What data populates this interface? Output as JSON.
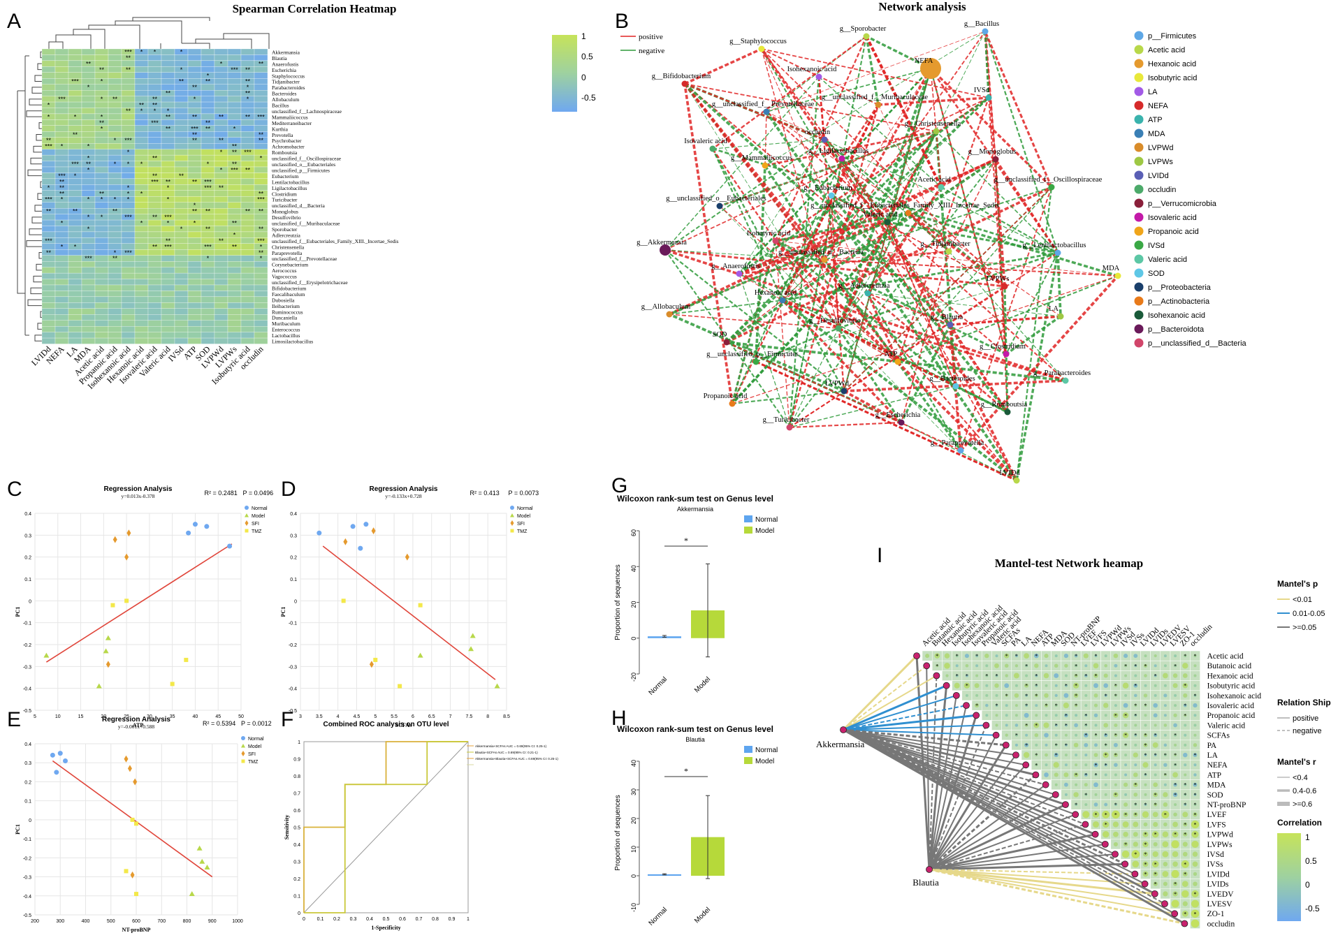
{
  "panels": {
    "a": {
      "letter": "A",
      "title": "Spearman Correlation Heatmap"
    },
    "b": {
      "letter": "B",
      "title": "Network analysis"
    },
    "c": {
      "letter": "C"
    },
    "d": {
      "letter": "D"
    },
    "e": {
      "letter": "E"
    },
    "f": {
      "letter": "F"
    },
    "g": {
      "letter": "G"
    },
    "h": {
      "letter": "H"
    },
    "i": {
      "letter": "I",
      "title": "Mantel-test Network heamap"
    }
  },
  "colors": {
    "low": "#6fa8f0",
    "mid": "#9ed1a0",
    "high": "#c6e35a",
    "red": "#e02424",
    "green": "#2e9a3a",
    "yellow": "#e5d54a",
    "gray": "#777777",
    "blue": "#2f8fd0"
  },
  "chart_data": [
    {
      "type": "heatmap",
      "title": "Spearman Correlation Heatmap",
      "columns": [
        "LVIDd",
        "NEFA",
        "LA",
        "MDA",
        "Acetic acid",
        "Propanoic acid",
        "Isohexanoic acid",
        "Hexanoic acid",
        "Isovaleric acid",
        "Valeric acid",
        "IVSd",
        "ATP",
        "SOD",
        "LVPWd",
        "LVPWs",
        "Isobutyric acid",
        "occludin"
      ],
      "rows": [
        "Akkermansia",
        "Blautia",
        "Anaerofustis",
        "Escherichia",
        "Staphylococcus",
        "Tidjanibacter",
        "Parabacteroides",
        "Bacteroides",
        "Allobaculum",
        "Bacillus",
        "unclassified_f__Lachnospiraceae",
        "Mammaliicoccus",
        "Mediterraneibacter",
        "Kurthia",
        "Prevotella",
        "Psychrobacter",
        "Achromobacter",
        "Romboutsia",
        "unclassified_f__Oscillospiraceae",
        "unclassified_o__Eubacteriales",
        "unclassified_p__Firmicutes",
        "Eubacterium",
        "Lentilactobacillus",
        "Ligilactobacillus",
        "Clostridium",
        "Turicibacter",
        "unclassified_d__Bacteria",
        "Monoglobus",
        "Desulfovibrio",
        "unclassified_f__Muribaculaceae",
        "Sporobacter",
        "Adlercreutzia",
        "unclassified_f__Eubacteriales_Family_XIII._Incertae_Sedis",
        "Christensenella",
        "Paraprevotella",
        "unclassified_f__Prevotellaceae",
        "Corynebacterium",
        "Aerococcus",
        "Vagococcus",
        "unclassified_f__Erysipelotrichaceae",
        "Bifidobacterium",
        "Faecalibaculum",
        "Dubosiella",
        "Ileibacterium",
        "Ruminococcus",
        "Duncaniella",
        "Muribaculum",
        "Enterococcus",
        "Lactobacillus",
        "Limosilactobacillus"
      ],
      "colorbar": {
        "ticks": [
          "1",
          "0.5",
          "0",
          "-0.5"
        ]
      }
    },
    {
      "type": "network",
      "title": "Network analysis",
      "edge_legend": [
        "positive",
        "negative"
      ],
      "node_legend": [
        "p__Firmicutes",
        "Acetic acid",
        "Hexanoic acid",
        "Isobutyric acid",
        "LA",
        "NEFA",
        "ATP",
        "MDA",
        "LVPWd",
        "LVPWs",
        "LVIDd",
        "occludin",
        "p__Verrucomicrobia",
        "Isovaleric acid",
        "Propanoic acid",
        "IVSd",
        "Valeric acid",
        "SOD",
        "p__Proteobacteria",
        "p__Actinobacteria",
        "Isohexanoic acid",
        "p__Bacteroidota",
        "p__unclassified_d__Bacteria"
      ],
      "nodes": [
        "g__Bacillus",
        "g__Sporobacter",
        "NEFA",
        "g__Staphylococcus",
        "Isohexanoic acid",
        "g__Bifidobacterium",
        "IVSd",
        "g__unclassified_f__Prevotellaceae",
        "g__unclassified_f__Muribaculaceae",
        "g__Christensenella",
        "occludin",
        "Isovaleric acid",
        "g__Monoglobus",
        "g__Ligilactobacillus",
        "g__Mammaliicoccus",
        "g__unclassified_f__Oscillospiraceae",
        "Acetic acid",
        "g__Eubacterium",
        "g__unclassified_o__Eubacteriales",
        "g__unclassified_f__Eubacteriales_Family_XIII._Incertae_Sedis",
        "Valeric acid",
        "g__Akkermansia",
        "Isobutyric acid",
        "g__Lentilactobacillus",
        "g__Tidjanibacter",
        "g__unclassified_d__Bacteria",
        "MDA",
        "g__Anaerofustis",
        "LVPWs",
        "g__Adlercreutzia",
        "Hexanoic acid",
        "g__Allobaculum",
        "LA",
        "g__Blautia",
        "g__Desulfovibrio",
        "SOD",
        "g__Clostridium",
        "ATP",
        "g__unclassified_p__Firmicutes",
        "g__Parabacteroides",
        "g__Bacteroides",
        "LVPWd",
        "Propanoic acid",
        "g__Romboutsia",
        "g__Escherichia",
        "g__Turicibacter",
        "g__Paraprevotella",
        "LVIDd"
      ]
    },
    {
      "type": "scatter",
      "title": "Regression Analysis",
      "equation": "y=0.013x-0.378",
      "r2": "R² = 0.2481",
      "p": "P = 0.0496",
      "xlabel": "ATP",
      "ylabel": "PC1",
      "xlim": [
        5,
        50
      ],
      "ylim": [
        -0.5,
        0.4
      ],
      "xticks": [
        "5",
        "10",
        "15",
        "20",
        "25",
        "30",
        "35",
        "40",
        "45",
        "50"
      ],
      "yticks": [
        "0.4",
        "0.3",
        "0.2",
        "0.1",
        "0",
        "-0.1",
        "-0.2",
        "-0.3",
        "-0.4",
        "-0.5"
      ],
      "legend": [
        "Normal",
        "Model",
        "SFI",
        "TMZ"
      ],
      "series": [
        {
          "name": "Normal",
          "points": [
            [
              38.5,
              0.31
            ],
            [
              40,
              0.35
            ],
            [
              42.5,
              0.34
            ],
            [
              47.5,
              0.25
            ]
          ]
        },
        {
          "name": "Model",
          "points": [
            [
              7.5,
              -0.25
            ],
            [
              19,
              -0.39
            ],
            [
              20.5,
              -0.23
            ],
            [
              21,
              -0.17
            ]
          ]
        },
        {
          "name": "SFI",
          "points": [
            [
              21,
              -0.29
            ],
            [
              22.5,
              0.28
            ],
            [
              25,
              0.2
            ],
            [
              25.5,
              0.31
            ]
          ]
        },
        {
          "name": "TMZ",
          "points": [
            [
              22,
              -0.02
            ],
            [
              25,
              0
            ],
            [
              35,
              -0.38
            ],
            [
              38,
              -0.27
            ]
          ]
        }
      ],
      "fit": [
        [
          7.5,
          -0.28
        ],
        [
          48,
          0.26
        ]
      ]
    },
    {
      "type": "scatter",
      "title": "Regression Analysis",
      "equation": "y=-0.133x+0.728",
      "r2": "R² = 0.413",
      "p": "P = 0.0073",
      "xlabel": "SCFAs",
      "ylabel": "PC1",
      "xlim": [
        3,
        8.5
      ],
      "ylim": [
        -0.5,
        0.4
      ],
      "xticks": [
        "3",
        "3.5",
        "4",
        "4.5",
        "5",
        "5.5",
        "6",
        "6.5",
        "7",
        "7.5",
        "8",
        "8.5"
      ],
      "yticks": [
        "0.4",
        "0.3",
        "0.2",
        "0.1",
        "0",
        "-0.1",
        "-0.2",
        "-0.3",
        "-0.4",
        "-0.5"
      ],
      "legend": [
        "Normal",
        "Model",
        "SFI",
        "TMZ"
      ],
      "series": [
        {
          "name": "Normal",
          "points": [
            [
              3.5,
              0.31
            ],
            [
              4.4,
              0.34
            ],
            [
              4.6,
              0.24
            ],
            [
              4.75,
              0.35
            ]
          ]
        },
        {
          "name": "Model",
          "points": [
            [
              6.2,
              -0.25
            ],
            [
              7.55,
              -0.22
            ],
            [
              7.6,
              -0.16
            ],
            [
              8.25,
              -0.39
            ]
          ]
        },
        {
          "name": "SFI",
          "points": [
            [
              4.2,
              0.27
            ],
            [
              4.9,
              -0.29
            ],
            [
              4.95,
              0.32
            ],
            [
              5.85,
              0.2
            ]
          ]
        },
        {
          "name": "TMZ",
          "points": [
            [
              4.15,
              0.0
            ],
            [
              5.0,
              -0.27
            ],
            [
              5.65,
              -0.39
            ],
            [
              6.2,
              -0.02
            ]
          ]
        }
      ],
      "fit": [
        [
          3.6,
          0.25
        ],
        [
          8.2,
          -0.36
        ]
      ]
    },
    {
      "type": "scatter",
      "title": "Regression Analysis",
      "equation": "y=-0.001x+0.588",
      "r2": "R² = 0.5394",
      "p": "P = 0.0012",
      "xlabel": "NT-proBNP",
      "ylabel": "PC1",
      "xlim": [
        200,
        1000
      ],
      "ylim": [
        -0.5,
        0.4
      ],
      "xticks": [
        "200",
        "300",
        "400",
        "500",
        "600",
        "700",
        "800",
        "900",
        "1000"
      ],
      "yticks": [
        "0.4",
        "0.3",
        "0.2",
        "0.1",
        "0",
        "-0.1",
        "-0.2",
        "-0.3",
        "-0.4",
        "-0.5"
      ],
      "legend": [
        "Normal",
        "Model",
        "SFI",
        "TMZ"
      ],
      "series": [
        {
          "name": "Normal",
          "points": [
            [
              270,
              0.34
            ],
            [
              285,
              0.25
            ],
            [
              300,
              0.35
            ],
            [
              320,
              0.31
            ]
          ]
        },
        {
          "name": "Model",
          "points": [
            [
              820,
              -0.39
            ],
            [
              850,
              -0.15
            ],
            [
              860,
              -0.22
            ],
            [
              880,
              -0.25
            ]
          ]
        },
        {
          "name": "SFI",
          "points": [
            [
              560,
              0.32
            ],
            [
              575,
              0.27
            ],
            [
              585,
              -0.29
            ],
            [
              595,
              0.2
            ]
          ]
        },
        {
          "name": "TMZ",
          "points": [
            [
              560,
              -0.27
            ],
            [
              585,
              0.0
            ],
            [
              600,
              -0.02
            ],
            [
              600,
              -0.39
            ]
          ]
        }
      ],
      "fit": [
        [
          270,
          0.31
        ],
        [
          900,
          -0.3
        ]
      ]
    },
    {
      "type": "line",
      "title": "Combined ROC analysis on OTU level",
      "xlabel": "1-Specificity",
      "ylabel": "Sensitivity",
      "xlim": [
        0,
        1
      ],
      "ylim": [
        0,
        1
      ],
      "xticks": [
        "0",
        "0.1",
        "0.2",
        "0.3",
        "0.4",
        "0.5",
        "0.6",
        "0.7",
        "0.8",
        "0.9",
        "1"
      ],
      "yticks": [
        "1",
        "0.9",
        "0.8",
        "0.7",
        "0.6",
        "0.5",
        "0.4",
        "0.3",
        "0.2",
        "0.1",
        "0"
      ],
      "legend": [
        "Akkermansia+SCFAs AUC = 0.69(95% CI: 0.25-1)",
        "Blautia+SCFAs AUC = 0.69(95% CI: 0.21-1)",
        "Akkermansia+Blautia+SCFAs AUC = 0.69(95% CI: 0.25-1)",
        ""
      ],
      "series": [
        {
          "name": "curve1",
          "x": [
            0,
            0,
            0.25,
            0.25,
            0.5,
            0.5,
            1
          ],
          "y": [
            0,
            0.5,
            0.5,
            0.75,
            0.75,
            1,
            1
          ]
        },
        {
          "name": "curve2",
          "x": [
            0,
            0.25,
            0.25,
            0.5,
            0.5,
            0.75,
            0.75,
            1
          ],
          "y": [
            0,
            0,
            0.75,
            0.75,
            0.75,
            0.75,
            1,
            1
          ]
        }
      ]
    },
    {
      "type": "bar",
      "title": "Wilcoxon rank-sum test on Genus level",
      "subtitle": "Akkermansia",
      "categories": [
        "Normal",
        "Model"
      ],
      "values": [
        1.0,
        15.5
      ],
      "errors": [
        0.5,
        26.0
      ],
      "ylabel": "Proportion of sequences",
      "ylim": [
        -20,
        60
      ],
      "yticks": [
        "60",
        "40",
        "20",
        "0",
        "-20"
      ],
      "legend": [
        "Normal",
        "Model"
      ],
      "significance": "*"
    },
    {
      "type": "bar",
      "title": "Wilcoxon rank-sum test on Genus level",
      "subtitle": "Blautia",
      "categories": [
        "Normal",
        "Model"
      ],
      "values": [
        0.5,
        13.5
      ],
      "errors": [
        0.2,
        14.5
      ],
      "ylabel": "Proportion of sequences",
      "ylim": [
        -10,
        40
      ],
      "yticks": [
        "40",
        "30",
        "20",
        "10",
        "0",
        "-10"
      ],
      "legend": [
        "Normal",
        "Model"
      ],
      "significance": "*"
    },
    {
      "type": "heatmap",
      "title": "Mantel-test Network heamap",
      "variables": [
        "Acetic acid",
        "Butanoic acid",
        "Hexanoic acid",
        "Isobutyric acid",
        "Isohexanoic acid",
        "Isovaleric acid",
        "Propanoic acid",
        "Valeric acid",
        "SCFAs",
        "PA",
        "LA",
        "NEFA",
        "ATP",
        "MDA",
        "SOD",
        "NT-proBNP",
        "LVEF",
        "LVFS",
        "LVPWd",
        "LVPWs",
        "IVSd",
        "IVSs",
        "LVIDd",
        "LVIDs",
        "LVEDV",
        "LVESV",
        "ZO-1",
        "occludin"
      ],
      "sources": [
        "Akkermansia",
        "Blautia"
      ],
      "legend_p": {
        "title": "Mantel's p",
        "items": [
          "<0.01",
          "0.01-0.05",
          ">=0.05"
        ]
      },
      "legend_relation": {
        "title": "Relation Ship",
        "items": [
          "positive",
          "negative"
        ]
      },
      "legend_r": {
        "title": "Mantel's r",
        "items": [
          "<0.4",
          "0.4-0.6",
          ">=0.6"
        ]
      },
      "colorbar": {
        "title": "Correlation",
        "ticks": [
          "1",
          "0.5",
          "0",
          "-0.5"
        ]
      }
    }
  ]
}
